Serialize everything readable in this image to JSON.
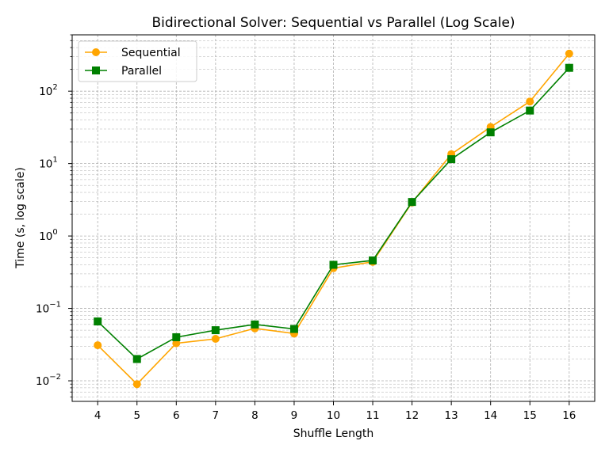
{
  "chart_data": {
    "type": "line",
    "title": "Bidirectional Solver: Sequential vs Parallel (Log Scale)",
    "xlabel": "Shuffle Length",
    "ylabel": "Time (s, log scale)",
    "yscale": "log",
    "ylim": [
      0.0052,
      600
    ],
    "x": [
      4,
      5,
      6,
      7,
      8,
      9,
      10,
      11,
      12,
      13,
      14,
      15,
      16
    ],
    "y_ticks": [
      {
        "value": 0.01,
        "base": "10",
        "exp": "−2"
      },
      {
        "value": 0.1,
        "base": "10",
        "exp": "−1"
      },
      {
        "value": 1,
        "base": "10",
        "exp": "0"
      },
      {
        "value": 10,
        "base": "10",
        "exp": "1"
      },
      {
        "value": 100,
        "base": "10",
        "exp": "2"
      }
    ],
    "grid": true,
    "legend_position": "upper-left",
    "series": [
      {
        "name": "Sequential",
        "color": "#FFA500",
        "marker": "circle",
        "values": [
          0.031,
          0.009,
          0.033,
          0.038,
          0.053,
          0.045,
          0.36,
          0.44,
          2.9,
          13.5,
          32,
          72,
          330
        ]
      },
      {
        "name": "Parallel",
        "color": "#008000",
        "marker": "square",
        "values": [
          0.066,
          0.02,
          0.04,
          0.05,
          0.06,
          0.052,
          0.4,
          0.46,
          2.95,
          11.5,
          27,
          54,
          210
        ]
      }
    ]
  }
}
